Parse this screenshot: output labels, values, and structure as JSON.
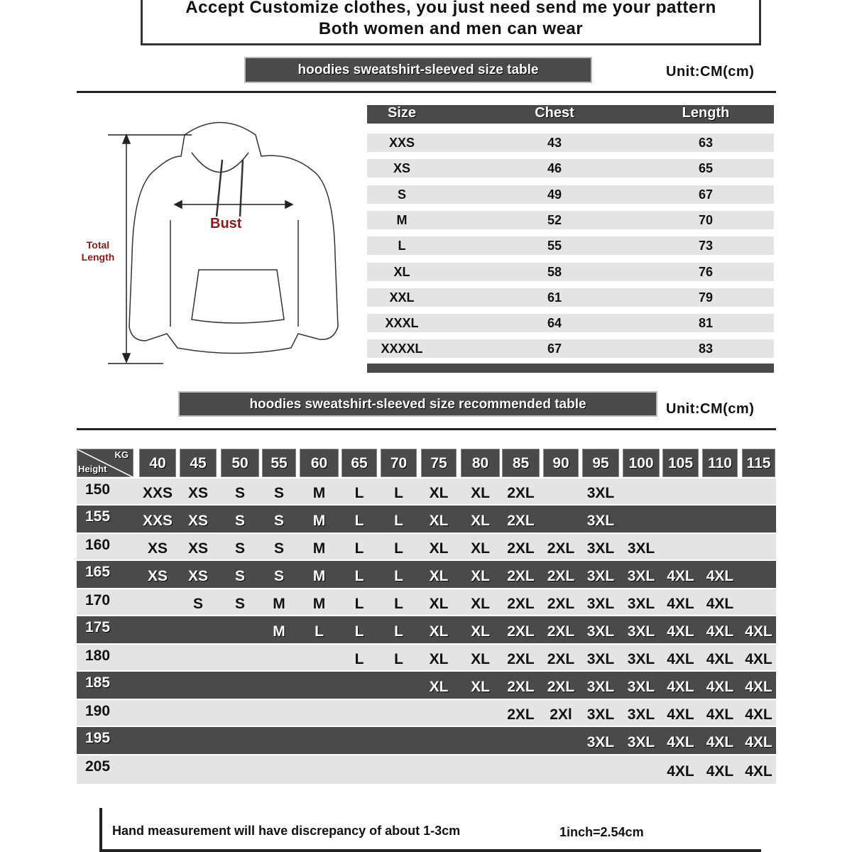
{
  "header": {
    "line1": "Accept Customize clothes, you just need send me your pattern",
    "line2": "Both women and men can wear"
  },
  "size_table": {
    "title": "hoodies sweatshirt-sleeved size  table",
    "unit": "Unit:CM(cm)",
    "columns": [
      "Size",
      "Chest",
      "Length"
    ],
    "rows": [
      [
        "XXS",
        "43",
        "63"
      ],
      [
        "XS",
        "46",
        "65"
      ],
      [
        "S",
        "49",
        "67"
      ],
      [
        "M",
        "52",
        "70"
      ],
      [
        "L",
        "55",
        "73"
      ],
      [
        "XL",
        "58",
        "76"
      ],
      [
        "XXL",
        "61",
        "79"
      ],
      [
        "XXXL",
        "64",
        "81"
      ],
      [
        "XXXXL",
        "67",
        "83"
      ]
    ]
  },
  "diagram": {
    "bust_label": "Bust",
    "length_label_1": "Total",
    "length_label_2": "Length",
    "label_color": "#8b1a1a"
  },
  "rec_table": {
    "title": "hoodies sweatshirt-sleeved size recommended table",
    "unit": "Unit:CM(cm)",
    "corner_kg": "KG",
    "corner_height": "Height",
    "weights": [
      "40",
      "45",
      "50",
      "55",
      "60",
      "65",
      "70",
      "75",
      "80",
      "85",
      "90",
      "95",
      "100",
      "105",
      "110",
      "115"
    ],
    "rows": [
      {
        "height": "150",
        "sizes": [
          "XXS",
          "XS",
          "S",
          "S",
          "M",
          "L",
          "L",
          "XL",
          "XL",
          "2XL",
          "",
          "3XL",
          "",
          "",
          "",
          ""
        ]
      },
      {
        "height": "155",
        "sizes": [
          "XXS",
          "XS",
          "S",
          "S",
          "M",
          "L",
          "L",
          "XL",
          "XL",
          "2XL",
          "",
          "3XL",
          "",
          "",
          "",
          ""
        ]
      },
      {
        "height": "160",
        "sizes": [
          "XS",
          "XS",
          "S",
          "S",
          "M",
          "L",
          "L",
          "XL",
          "XL",
          "2XL",
          "2XL",
          "3XL",
          "3XL",
          "",
          "",
          ""
        ]
      },
      {
        "height": "165",
        "sizes": [
          "XS",
          "XS",
          "S",
          "S",
          "M",
          "L",
          "L",
          "XL",
          "XL",
          "2XL",
          "2XL",
          "3XL",
          "3XL",
          "4XL",
          "4XL",
          ""
        ]
      },
      {
        "height": "170",
        "sizes": [
          "",
          "S",
          "S",
          "M",
          "M",
          "L",
          "L",
          "XL",
          "XL",
          "2XL",
          "2XL",
          "3XL",
          "3XL",
          "4XL",
          "4XL",
          ""
        ]
      },
      {
        "height": "175",
        "sizes": [
          "",
          "",
          "",
          "M",
          "L",
          "L",
          "L",
          "XL",
          "XL",
          "2XL",
          "2XL",
          "3XL",
          "3XL",
          "4XL",
          "4XL",
          "4XL"
        ]
      },
      {
        "height": "180",
        "sizes": [
          "",
          "",
          "",
          "",
          "",
          "L",
          "L",
          "XL",
          "XL",
          "2XL",
          "2XL",
          "3XL",
          "3XL",
          "4XL",
          "4XL",
          "4XL"
        ]
      },
      {
        "height": "185",
        "sizes": [
          "",
          "",
          "",
          "",
          "",
          "",
          "",
          "XL",
          "XL",
          "2XL",
          "2XL",
          "3XL",
          "3XL",
          "4XL",
          "4XL",
          "4XL"
        ]
      },
      {
        "height": "190",
        "sizes": [
          "",
          "",
          "",
          "",
          "",
          "",
          "",
          "",
          "",
          "2XL",
          "2Xl",
          "3XL",
          "3XL",
          "4XL",
          "4XL",
          "4XL"
        ]
      },
      {
        "height": "195",
        "sizes": [
          "",
          "",
          "",
          "",
          "",
          "",
          "",
          "",
          "",
          "",
          "",
          "3XL",
          "3XL",
          "4XL",
          "4XL",
          "4XL"
        ]
      },
      {
        "height": "205",
        "sizes": [
          "",
          "",
          "",
          "",
          "",
          "",
          "",
          "",
          "",
          "",
          "",
          "",
          "",
          "4XL",
          "4XL",
          "4XL"
        ]
      }
    ]
  },
  "footer": {
    "note": "Hand measurement will have discrepancy of about  1-3cm",
    "conversion": "1inch=2.54cm"
  }
}
